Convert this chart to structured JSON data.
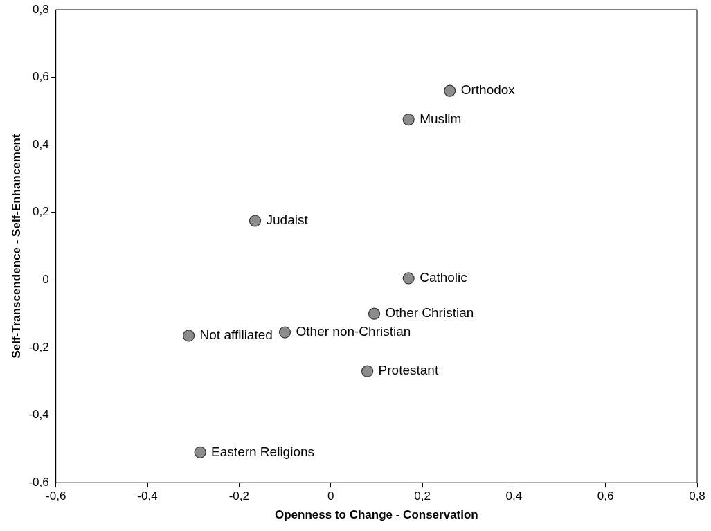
{
  "chart_data": {
    "type": "scatter",
    "xlabel": "Openness to Change - Conservation",
    "ylabel": "Self-Transcendence - Self-Enhancement",
    "x": [
      0.26,
      0.17,
      -0.165,
      0.17,
      0.095,
      -0.31,
      -0.1,
      0.08,
      -0.285
    ],
    "values": [
      0.56,
      0.475,
      0.175,
      0.005,
      -0.1,
      -0.165,
      -0.155,
      -0.27,
      -0.51
    ],
    "color": "#8c8c8c",
    "marker": "circle",
    "grid": false,
    "legend": false,
    "xlim": [
      -0.6,
      0.8
    ],
    "ylim": [
      -0.6,
      0.8
    ],
    "xticks": [
      {
        "value": -0.6,
        "label": "-0,6"
      },
      {
        "value": -0.4,
        "label": "-0,4"
      },
      {
        "value": -0.2,
        "label": "-0,2"
      },
      0,
      {
        "value": 0.2,
        "label": "0,2"
      },
      {
        "value": 0.4,
        "label": "0,4"
      },
      {
        "value": 0.6,
        "label": "0,6"
      },
      {
        "value": 0.8,
        "label": "0,8"
      }
    ],
    "yticks": [
      {
        "value": -0.6,
        "label": "-0,6"
      },
      {
        "value": -0.4,
        "label": "-0,4"
      },
      {
        "value": -0.2,
        "label": "-0,2"
      },
      0,
      {
        "value": 0.2,
        "label": "0,2"
      },
      {
        "value": 0.4,
        "label": "0,4"
      },
      {
        "value": 0.6,
        "label": "0,6"
      },
      {
        "value": 0.8,
        "label": "0,8"
      }
    ],
    "annotations": [
      {
        "text": "Orthodox",
        "x": 0.26,
        "y": 0.56
      },
      {
        "text": "Muslim",
        "x": 0.17,
        "y": 0.475
      },
      {
        "text": "Judaist",
        "x": -0.165,
        "y": 0.175
      },
      {
        "text": "Catholic",
        "x": 0.17,
        "y": 0.005
      },
      {
        "text": "Other Christian",
        "x": 0.095,
        "y": -0.1
      },
      {
        "text": "Not affiliated",
        "x": -0.31,
        "y": -0.165
      },
      {
        "text": "Other non-Christian",
        "x": -0.1,
        "y": -0.155
      },
      {
        "text": "Protestant",
        "x": 0.08,
        "y": -0.27
      },
      {
        "text": "Eastern Religions",
        "x": -0.285,
        "y": -0.51
      }
    ]
  }
}
